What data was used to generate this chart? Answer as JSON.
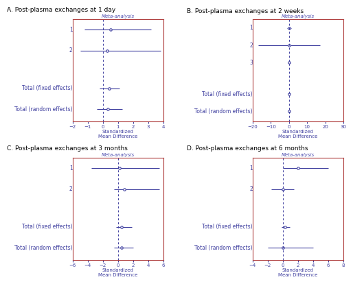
{
  "panels": [
    {
      "label": "A. Post-plasma exchanges at 1 day",
      "studies": [
        "1",
        "2"
      ],
      "totals": [
        "Total (fixed effects)",
        "Total (random effects)"
      ],
      "study_means": [
        0.5,
        0.3
      ],
      "study_cis": [
        [
          -1.2,
          3.2
        ],
        [
          -1.5,
          3.8
        ]
      ],
      "total_means": [
        0.4,
        0.35
      ],
      "total_cis": [
        [
          -0.2,
          1.1
        ],
        [
          -0.4,
          1.3
        ]
      ],
      "xlim": [
        -2,
        4
      ],
      "xticks": [
        -2,
        -1,
        0,
        1,
        2,
        3,
        4
      ],
      "xlabel": "Standardized\nMean Difference"
    },
    {
      "label": "B. Post-plasma exchanges at 2 weeks",
      "studies": [
        "1",
        "2",
        "3"
      ],
      "totals": [
        "Total (fixed effects)",
        "Total (random effects)"
      ],
      "study_means": [
        0.2,
        0.0,
        0.1
      ],
      "study_cis": [
        [
          -1.0,
          1.4
        ],
        [
          -17.0,
          17.0
        ],
        [
          -0.5,
          0.7
        ]
      ],
      "total_means": [
        0.1,
        0.1
      ],
      "total_cis": [
        [
          -0.3,
          0.5
        ],
        [
          -0.5,
          0.7
        ]
      ],
      "xlim": [
        -20,
        30
      ],
      "xticks": [
        -20,
        -10,
        0,
        10,
        20,
        30
      ],
      "xlabel": "Standardized\nMean Difference"
    },
    {
      "label": "C. Post-plasma exchanges at 3 months",
      "studies": [
        "1",
        "2"
      ],
      "totals": [
        "Total (fixed effects)",
        "Total (random effects)"
      ],
      "study_means": [
        0.2,
        0.8
      ],
      "study_cis": [
        [
          -3.5,
          5.5
        ],
        [
          -0.5,
          5.5
        ]
      ],
      "total_means": [
        0.5,
        0.5
      ],
      "total_cis": [
        [
          -0.3,
          1.8
        ],
        [
          -0.5,
          2.0
        ]
      ],
      "xlim": [
        -6,
        6
      ],
      "xticks": [
        -6,
        -4,
        -2,
        0,
        2,
        4,
        6
      ],
      "xlabel": "Standardized\nMean Difference"
    },
    {
      "label": "D. Post-plasma exchanges at 6 months",
      "studies": [
        "1",
        "2"
      ],
      "totals": [
        "Total (fixed effects)",
        "Total (random effects)"
      ],
      "study_means": [
        2.0,
        0.0
      ],
      "study_cis": [
        [
          0.0,
          6.0
        ],
        [
          -1.5,
          1.5
        ]
      ],
      "total_means": [
        0.3,
        0.0
      ],
      "total_cis": [
        [
          -0.2,
          0.9
        ],
        [
          -2.0,
          4.0
        ]
      ],
      "xlim": [
        -4,
        8
      ],
      "xticks": [
        -4,
        -2,
        0,
        2,
        4,
        6,
        8
      ],
      "xlabel": "Standardized\nMean Difference"
    }
  ],
  "line_color": "#4040a0",
  "box_edge_color": "#b04040",
  "text_color": "#4040a0",
  "title_color": "#000000",
  "meta_color": "#5050b0",
  "background": "#ffffff",
  "label_fontsize": 5.5,
  "title_fontsize": 6.5,
  "tick_fontsize": 5,
  "xlabel_fontsize": 5,
  "meta_fontsize": 5
}
